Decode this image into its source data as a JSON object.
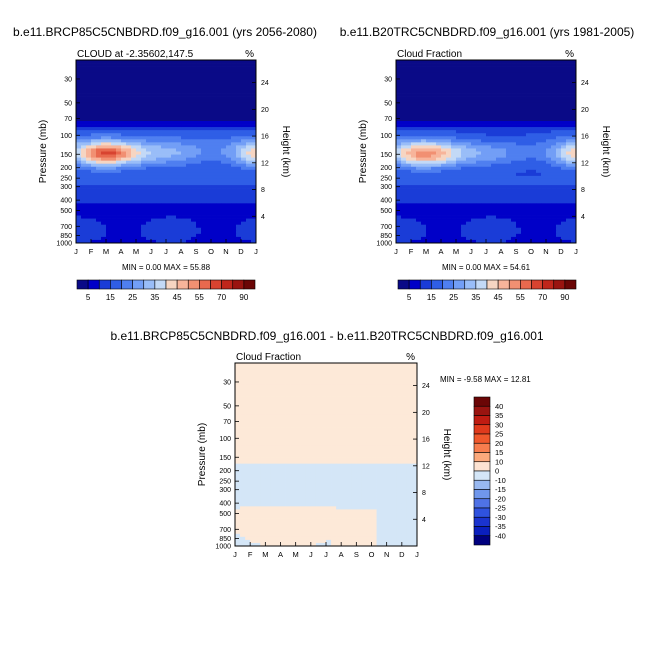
{
  "chart_data": [
    {
      "type": "heatmap",
      "title": "b.e11.BRCP85C5CNBDRD.f09_g16.001 (yrs 2056-2080)",
      "subtitle": "CLOUD at -2.35602,147.5",
      "units": "%",
      "xlabel": "",
      "ylabel": "Pressure (mb)",
      "y2label": "Height (km)",
      "x_ticks": [
        "J",
        "F",
        "M",
        "A",
        "M",
        "J",
        "J",
        "A",
        "S",
        "O",
        "N",
        "D",
        "J"
      ],
      "y_ticks": [
        "30",
        "50",
        "70",
        "100",
        "150",
        "200",
        "250",
        "300",
        "400",
        "500",
        "700",
        "850",
        "1000"
      ],
      "y2_ticks": [
        "24",
        "20",
        "16",
        "12",
        "8",
        "4"
      ],
      "ylim": [
        1000,
        20
      ],
      "stats": "MIN =   0.00 MAX =  55.88",
      "min": 0.0,
      "max": 55.88,
      "colorbar_labels": [
        "5",
        "15",
        "25",
        "35",
        "45",
        "55",
        "70",
        "90"
      ],
      "colorbar_levels": [
        0,
        5,
        10,
        15,
        20,
        25,
        30,
        35,
        40,
        45,
        50,
        55,
        60,
        70,
        80,
        90,
        100
      ]
    },
    {
      "type": "heatmap",
      "title": "b.e11.B20TRC5CNBDRD.f09_g16.001 (yrs 1981-2005)",
      "subtitle": "Cloud Fraction",
      "units": "%",
      "xlabel": "",
      "ylabel": "Pressure (mb)",
      "y2label": "Height (km)",
      "x_ticks": [
        "J",
        "F",
        "M",
        "A",
        "M",
        "J",
        "J",
        "A",
        "S",
        "O",
        "N",
        "D",
        "J"
      ],
      "y_ticks": [
        "30",
        "50",
        "70",
        "100",
        "150",
        "200",
        "250",
        "300",
        "400",
        "500",
        "700",
        "850",
        "1000"
      ],
      "y2_ticks": [
        "24",
        "20",
        "16",
        "12",
        "8",
        "4"
      ],
      "ylim": [
        1000,
        20
      ],
      "stats": "MIN =   0.00 MAX =  54.61",
      "min": 0.0,
      "max": 54.61,
      "colorbar_labels": [
        "5",
        "15",
        "25",
        "35",
        "45",
        "55",
        "70",
        "90"
      ],
      "colorbar_levels": [
        0,
        5,
        10,
        15,
        20,
        25,
        30,
        35,
        40,
        45,
        50,
        55,
        60,
        70,
        80,
        90,
        100
      ]
    },
    {
      "type": "heatmap",
      "title": "b.e11.BRCP85C5CNBDRD.f09_g16.001 - b.e11.B20TRC5CNBDRD.f09_g16.001",
      "subtitle": "Cloud Fraction",
      "units": "%",
      "xlabel": "",
      "ylabel": "Pressure (mb)",
      "y2label": "Height (km)",
      "x_ticks": [
        "J",
        "F",
        "M",
        "A",
        "M",
        "J",
        "J",
        "A",
        "S",
        "O",
        "N",
        "D",
        "J"
      ],
      "y_ticks": [
        "30",
        "50",
        "70",
        "100",
        "150",
        "200",
        "250",
        "300",
        "400",
        "500",
        "700",
        "850",
        "1000"
      ],
      "y2_ticks": [
        "24",
        "20",
        "16",
        "12",
        "8",
        "4"
      ],
      "ylim": [
        1000,
        20
      ],
      "stats": "MIN =  -9.58 MAX =  12.81",
      "min": -9.58,
      "max": 12.81,
      "colorbar_labels": [
        "40",
        "35",
        "30",
        "25",
        "20",
        "15",
        "10",
        "0",
        "-10",
        "-15",
        "-20",
        "-25",
        "-30",
        "-35",
        "-40"
      ]
    }
  ],
  "colors": {
    "seq": [
      "#0a0a87",
      "#0000c8",
      "#1a3cd7",
      "#2f5ee6",
      "#4f7ff0",
      "#729ef6",
      "#99bdf8",
      "#c3d9f6",
      "#f6d5c2",
      "#f7b49a",
      "#f19072",
      "#e8694e",
      "#d84330",
      "#c0261b",
      "#9a1410",
      "#6b0606"
    ],
    "div": [
      "#6b0606",
      "#9a1410",
      "#bf1c12",
      "#e03a1c",
      "#f0582c",
      "#f77d4e",
      "#fba97c",
      "#fde3d2",
      "#d4e6f7",
      "#98b8f0",
      "#7097ec",
      "#4f72e6",
      "#2f52df",
      "#1a33cf",
      "#0a1fbe",
      "#00007f"
    ]
  }
}
